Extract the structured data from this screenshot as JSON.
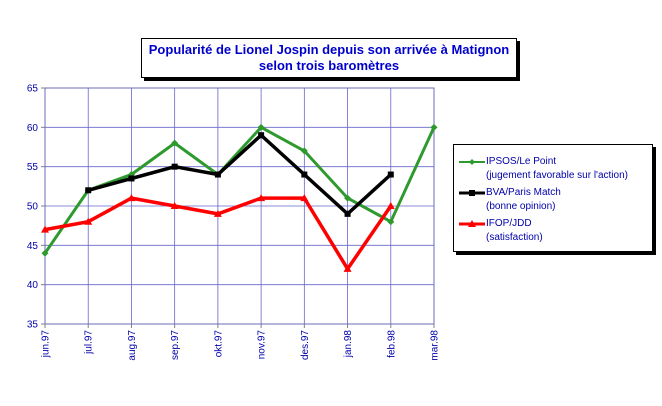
{
  "chart_data": {
    "type": "line",
    "title": "Popularité de Lionel Jospin depuis son arrivée à Matignon",
    "subtitle": "selon trois baromètres",
    "categories": [
      "jun.97",
      "jul.97",
      "aug.97",
      "sep.97",
      "okt.97",
      "nov.97",
      "des.97",
      "jan.98",
      "feb.98",
      "mar.98"
    ],
    "ylim": [
      35,
      65
    ],
    "yticks": [
      "35",
      "40",
      "45",
      "50",
      "55",
      "60",
      "65"
    ],
    "grid": true,
    "legend_position": "right",
    "series": [
      {
        "name": "IPSOS/Le Point",
        "name_detail": "(jugement favorable sur l'action)",
        "color": "#2e9a2e",
        "marker": "diamond",
        "values": [
          44,
          52,
          54,
          58,
          54,
          60,
          57,
          51,
          48,
          60
        ]
      },
      {
        "name": "BVA/Paris Match",
        "name_detail": "(bonne opinion)",
        "color": "#000000",
        "marker": "square",
        "values": [
          null,
          52,
          53.5,
          55,
          54,
          59,
          54,
          49,
          54,
          null
        ]
      },
      {
        "name": "IFOP/JDD",
        "name_detail": "(satisfaction)",
        "color": "#ff0000",
        "marker": "triangle",
        "values": [
          47,
          48,
          51,
          50,
          49,
          51,
          51,
          42,
          50,
          null
        ]
      }
    ]
  }
}
